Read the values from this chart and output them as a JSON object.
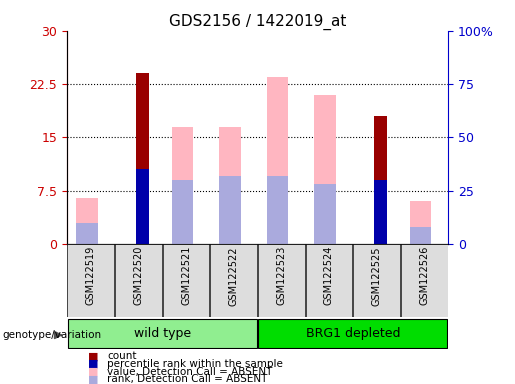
{
  "title": "GDS2156 / 1422019_at",
  "samples": [
    "GSM122519",
    "GSM122520",
    "GSM122521",
    "GSM122522",
    "GSM122523",
    "GSM122524",
    "GSM122525",
    "GSM122526"
  ],
  "groups": [
    {
      "name": "wild type",
      "color": "#90EE90",
      "samples": [
        0,
        1,
        2,
        3
      ]
    },
    {
      "name": "BRG1 depleted",
      "color": "#00DD00",
      "samples": [
        4,
        5,
        6,
        7
      ]
    }
  ],
  "left_ylim": [
    0,
    30
  ],
  "right_ylim": [
    0,
    100
  ],
  "left_yticks": [
    0,
    7.5,
    15,
    22.5,
    30
  ],
  "right_yticks": [
    0,
    25,
    50,
    75,
    100
  ],
  "right_yticklabels": [
    "0",
    "25",
    "50",
    "75",
    "100%"
  ],
  "left_yticklabels": [
    "0",
    "7.5",
    "15",
    "22.5",
    "30"
  ],
  "left_color": "#CC0000",
  "right_color": "#0000CC",
  "red_bars": [
    0,
    24.0,
    0,
    0,
    0,
    0,
    18.0,
    0
  ],
  "blue_bars": [
    0,
    35.0,
    0,
    0,
    0,
    0,
    30.0,
    0
  ],
  "pink_bars": [
    6.5,
    0,
    16.5,
    16.5,
    23.5,
    21.0,
    0,
    6.0
  ],
  "lavender_bars": [
    10.0,
    0,
    30.0,
    32.0,
    32.0,
    28.0,
    0,
    8.0
  ],
  "red_bar_color": "#990000",
  "blue_bar_color": "#0000AA",
  "pink_bar_color": "#FFB6C1",
  "lavender_bar_color": "#AAAADD",
  "legend_items": [
    {
      "color": "#990000",
      "label": "count"
    },
    {
      "color": "#0000AA",
      "label": "percentile rank within the sample"
    },
    {
      "color": "#FFB6C1",
      "label": "value, Detection Call = ABSENT"
    },
    {
      "color": "#AAAADD",
      "label": "rank, Detection Call = ABSENT"
    }
  ]
}
